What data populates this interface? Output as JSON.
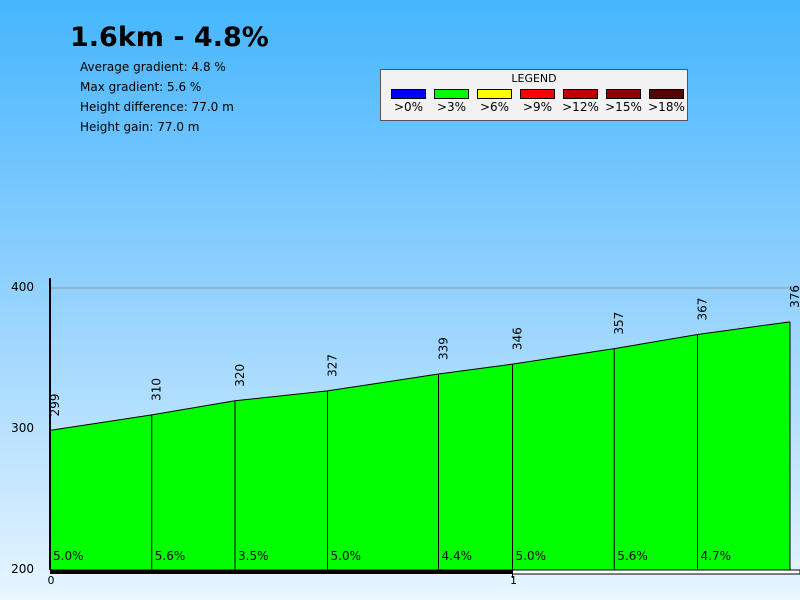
{
  "title": "1.6km - 4.8%",
  "stats": [
    "Average gradient: 4.8 %",
    "Max gradient: 5.6 %",
    "Height difference: 77.0 m",
    "Height gain: 77.0 m"
  ],
  "legend": {
    "title": "LEGEND",
    "items": [
      {
        "label": ">0%",
        "color": "#0000ff"
      },
      {
        "label": ">3%",
        "color": "#00ff00"
      },
      {
        "label": ">6%",
        "color": "#ffff00"
      },
      {
        "label": ">9%",
        "color": "#ff0000"
      },
      {
        "label": ">12%",
        "color": "#c00000"
      },
      {
        "label": ">15%",
        "color": "#8b0000"
      },
      {
        "label": ">18%",
        "color": "#5a0000"
      }
    ]
  },
  "chart_data": {
    "type": "area",
    "xlabel": "",
    "ylabel": "",
    "xlim": [
      0,
      1.6
    ],
    "ylim": [
      200,
      400
    ],
    "y_ticks": [
      "200",
      "300",
      "400"
    ],
    "x_ticks": [
      "0",
      "1"
    ],
    "fill_color": "#00ff00",
    "points": [
      {
        "x": 0.0,
        "y": 299,
        "label": "299"
      },
      {
        "x": 0.22,
        "y": 310,
        "label": "310"
      },
      {
        "x": 0.4,
        "y": 320,
        "label": "320"
      },
      {
        "x": 0.6,
        "y": 327,
        "label": "327"
      },
      {
        "x": 0.84,
        "y": 339,
        "label": "339"
      },
      {
        "x": 1.0,
        "y": 346,
        "label": "346"
      },
      {
        "x": 1.22,
        "y": 357,
        "label": "357"
      },
      {
        "x": 1.4,
        "y": 367,
        "label": "367"
      },
      {
        "x": 1.6,
        "y": 376,
        "label": "376"
      }
    ],
    "segment_gradients": [
      "5.0%",
      "5.6%",
      "3.5%",
      "5.0%",
      "4.4%",
      "5.0%",
      "5.6%",
      "4.7%"
    ]
  }
}
